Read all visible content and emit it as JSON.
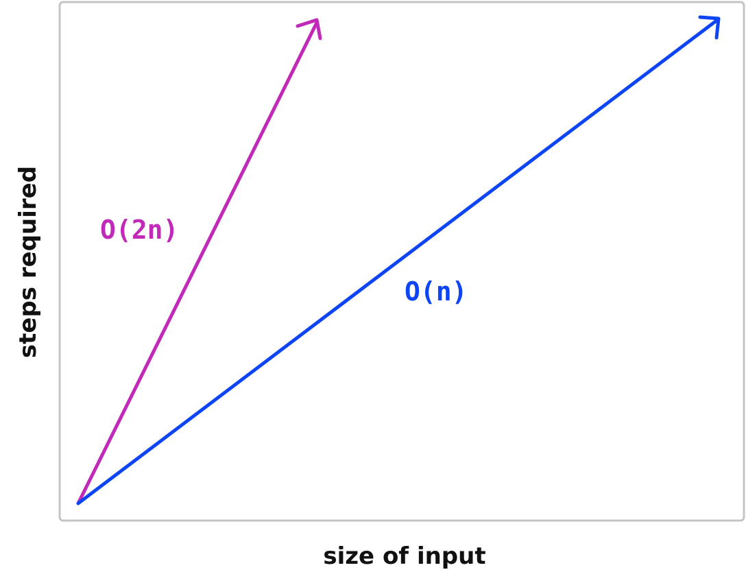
{
  "diagram": {
    "x_axis_label": "size of input",
    "y_axis_label": "steps required",
    "frame_color": "#c4c4c4",
    "lines": [
      {
        "label": "O(2n)",
        "color": "#c12ab8",
        "arrow": true
      },
      {
        "label": "O(n)",
        "color": "#0d45f5",
        "arrow": true
      }
    ]
  }
}
